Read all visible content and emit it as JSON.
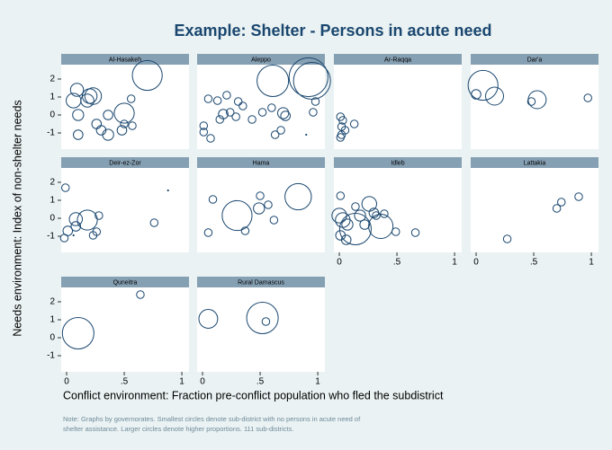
{
  "chart_data": {
    "type": "scatter",
    "title": "Example: Shelter - Persons in acute need",
    "xlabel": "Conflict environment: Fraction pre-conflict population who fled the subdistrict",
    "ylabel": "Needs environment: Index of non-shelter needs",
    "note": [
      "Note: Graphs by governorates. Smallest circles denote sub-district with no persons in acute need of",
      "shelter assistance. Larger circles denote higher proportions. 111 sub-districts."
    ],
    "color": "#1a476f",
    "xlim": [
      -0.047,
      1.062
    ],
    "ylim": [
      -1.9,
      2.8
    ],
    "xticks": [
      0,
      {
        "value": 0.5,
        "label": ".5"
      },
      1
    ],
    "yticks": [
      -1,
      0,
      1,
      2
    ],
    "panels": [
      {
        "title": "Al-Hasakeh",
        "x": [
          0.7,
          0.09,
          0.06,
          0.2,
          0.23,
          0.18,
          0.1,
          0.36,
          0.26,
          0.36,
          0.48,
          0.5,
          0.3,
          0.1,
          0.57,
          0.5,
          0.56
        ],
        "y": [
          2.2,
          1.4,
          0.8,
          1.05,
          1.05,
          0.8,
          0,
          0,
          -0.5,
          -1.1,
          -0.85,
          -0.5,
          -0.85,
          -1.1,
          -0.6,
          0.1,
          0.9
        ],
        "size": [
          0.58,
          0.1,
          0.13,
          0.13,
          0.17,
          0.1,
          0.07,
          0.05,
          0.05,
          0.07,
          0.05,
          0.03,
          0.05,
          0.05,
          0.03,
          0.25,
          0.03
        ]
      },
      {
        "title": "Aleppo",
        "x": [
          0.61,
          0.92,
          0.95,
          0.05,
          0.13,
          0.21,
          0.31,
          0.18,
          0.24,
          0.29,
          0.35,
          0.01,
          0.01,
          0.07,
          0.7,
          0.72,
          0.96,
          0.98,
          0.6,
          0.63,
          0.68,
          0.9,
          0.43,
          0.52,
          0.15
        ],
        "y": [
          1.9,
          2.1,
          1.9,
          0.9,
          0.8,
          1.1,
          0.75,
          0.05,
          0.15,
          -0.1,
          0.5,
          -0.6,
          -0.95,
          -1.3,
          0.1,
          -0.05,
          0.15,
          0.75,
          0.4,
          -1.1,
          -0.85,
          -1.1,
          -0.25,
          0.15,
          -0.25
        ],
        "size": [
          0.65,
          1.0,
          0.9,
          0.03,
          0.03,
          0.03,
          0.03,
          0.05,
          0.03,
          0.03,
          0.03,
          0.03,
          0.03,
          0.03,
          0.07,
          0.05,
          0.03,
          0.03,
          0.03,
          0.03,
          0.03,
          0,
          0.03,
          0.03,
          0.03
        ]
      },
      {
        "title": "Ar-Raqqa",
        "x": [
          0.01,
          0.03,
          0.02,
          0.05,
          0.02,
          0.01,
          0.13
        ],
        "y": [
          -0.1,
          -0.3,
          -0.65,
          -0.85,
          -1.1,
          -1.25,
          -0.5
        ],
        "size": [
          0.03,
          0.03,
          0.03,
          0.03,
          0.03,
          0.03,
          0.03
        ]
      },
      {
        "title": "Dar'a",
        "x": [
          0.06,
          0,
          0.16,
          0.48,
          0.53,
          0.97
        ],
        "y": [
          1.65,
          1.15,
          1.05,
          0.75,
          0.85,
          0.95
        ],
        "size": [
          0.58,
          0.05,
          0.2,
          0.03,
          0.2,
          0.03
        ]
      },
      {
        "title": "Deir-ez-Zor",
        "x": [
          -0.01,
          0.01,
          -0.02,
          0.08,
          0.18,
          0.08,
          0.28,
          0.23,
          0.26,
          0.76,
          0.88,
          0.06
        ],
        "y": [
          1.7,
          -0.7,
          -1.1,
          -0.05,
          -0.1,
          -0.45,
          0.15,
          -0.95,
          -0.75,
          -0.25,
          1.55,
          -0.95
        ],
        "size": [
          0.03,
          0.05,
          0.03,
          0.1,
          0.25,
          0.05,
          0.03,
          0.03,
          0.03,
          0.03,
          0,
          0
        ]
      },
      {
        "title": "Hama",
        "x": [
          0.3,
          0.83,
          0.49,
          0.5,
          0.57,
          0.62,
          0.37,
          0.09,
          0.05
        ],
        "y": [
          0.15,
          1.2,
          0.55,
          1.25,
          0.75,
          -0.1,
          -0.7,
          1.05,
          -0.8
        ],
        "size": [
          0.58,
          0.45,
          0.07,
          0.03,
          0.03,
          0.03,
          0.03,
          0.03,
          0.03
        ]
      },
      {
        "title": "Idleb",
        "x": [
          0.14,
          0,
          0.03,
          0.07,
          0.01,
          0.06,
          0.26,
          0.36,
          0.3,
          0.18,
          0.01,
          0.32,
          0.39,
          0.66,
          0.49,
          0.14,
          0.22
        ],
        "y": [
          -0.6,
          0.15,
          -0.1,
          -0.35,
          -0.95,
          -1.2,
          0.8,
          -0.45,
          0.3,
          0.15,
          1.25,
          0.15,
          0.25,
          -0.8,
          -0.75,
          0.65,
          -0.35
        ],
        "size": [
          0.65,
          0.13,
          0.13,
          0.07,
          0.05,
          0.05,
          0.13,
          0.38,
          0.05,
          0.07,
          0.03,
          0.03,
          0.03,
          0.03,
          0.03,
          0.03,
          0.05
        ]
      },
      {
        "title": "Lattakia",
        "x": [
          0.89,
          0.74,
          0.7,
          0.27
        ],
        "y": [
          1.2,
          0.9,
          0.55,
          -1.15
        ],
        "size": [
          0.03,
          0.03,
          0.03,
          0.03
        ]
      },
      {
        "title": "Quneitra",
        "x": [
          0.1,
          0.64
        ],
        "y": [
          0.25,
          2.4
        ],
        "size": [
          0.65,
          0.03
        ]
      },
      {
        "title": "Rural Damascus",
        "x": [
          0.05,
          0.52,
          0.55
        ],
        "y": [
          1.05,
          1.1,
          0.9
        ],
        "size": [
          0.22,
          0.65,
          0.03
        ]
      }
    ]
  }
}
